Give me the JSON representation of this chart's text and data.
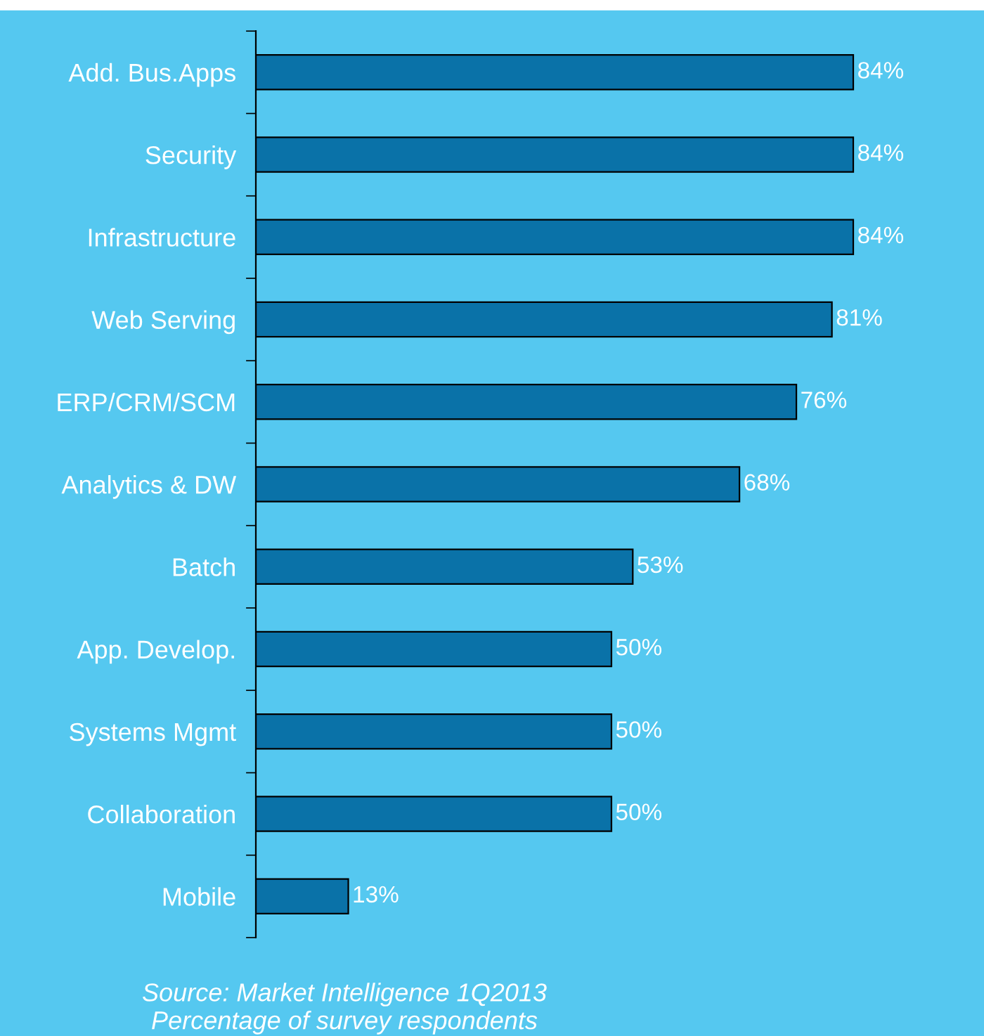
{
  "chart_data": {
    "type": "bar",
    "orientation": "horizontal",
    "categories": [
      "Add. Bus.Apps",
      "Security",
      "Infrastructure",
      "Web Serving",
      "ERP/CRM/SCM",
      "Analytics & DW",
      "Batch",
      "App. Develop.",
      "Systems Mgmt",
      "Collaboration",
      "Mobile"
    ],
    "values": [
      84,
      84,
      84,
      81,
      76,
      68,
      53,
      50,
      50,
      50,
      13
    ],
    "value_labels": [
      "84%",
      "84%",
      "84%",
      "81%",
      "76%",
      "68%",
      "53%",
      "50%",
      "50%",
      "50%",
      "13%"
    ],
    "color": "#0a72a8",
    "annotations": [
      "Source: Market Intelligence 1Q2013",
      "Percentage of survey respondents"
    ]
  }
}
